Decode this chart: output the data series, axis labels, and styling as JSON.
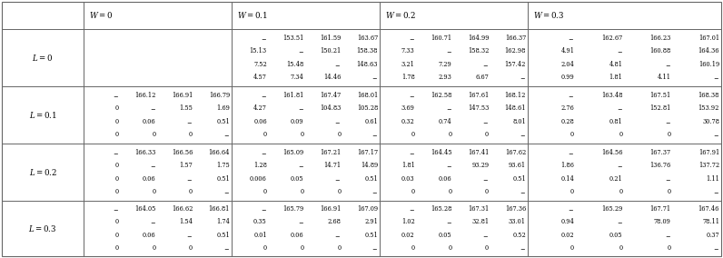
{
  "col_headers": [
    "W = 0",
    "W = 0.1",
    "W = 0.2",
    "W = 0.3"
  ],
  "row_headers": [
    "L = 0",
    "L = 0.1",
    "L = 0.2",
    "L = 0.3"
  ],
  "cells": {
    "L=0,W=0": "",
    "L=0,W=0.1": [
      [
        "–",
        "153.51",
        "161.59",
        "163.67"
      ],
      [
        "15.13",
        "–",
        "150.21",
        "158.38"
      ],
      [
        "7.52",
        "15.48",
        "–",
        "148.63"
      ],
      [
        "4.57",
        "7.34",
        "14.46",
        "–"
      ]
    ],
    "L=0,W=0.2": [
      [
        "–",
        "160.71",
        "164.99",
        "166.37"
      ],
      [
        "7.33",
        "–",
        "158.32",
        "162.98"
      ],
      [
        "3.21",
        "7.29",
        "–",
        "157.42"
      ],
      [
        "1.78",
        "2.93",
        "6.67",
        "–"
      ]
    ],
    "L=0,W=0.3": [
      [
        "–",
        "162.67",
        "166.23",
        "167.01"
      ],
      [
        "4.91",
        "–",
        "160.88",
        "164.36"
      ],
      [
        "2.04",
        "4.81",
        "–",
        "160.19"
      ],
      [
        "0.99",
        "1.81",
        "4.11",
        "–"
      ]
    ],
    "L=0.1,W=0": [
      [
        "–",
        "166.12",
        "166.91",
        "166.79"
      ],
      [
        "0",
        "–",
        "1.55",
        "1.69"
      ],
      [
        "0",
        "0.06",
        "–",
        "0.51"
      ],
      [
        "0",
        "0",
        "0",
        "–"
      ]
    ],
    "L=0.1,W=0.1": [
      [
        "–",
        "161.81",
        "167.47",
        "168.01"
      ],
      [
        "4.27",
        "–",
        "104.83",
        "105.28"
      ],
      [
        "0.06",
        "0.09",
        "–",
        "0.61"
      ],
      [
        "0",
        "0",
        "0",
        "–"
      ]
    ],
    "L=0.1,W=0.2": [
      [
        "–",
        "162.58",
        "167.61",
        "168.12"
      ],
      [
        "3.69",
        "–",
        "147.53",
        "148.61"
      ],
      [
        "0.32",
        "0.74",
        "–",
        "8.01"
      ],
      [
        "0",
        "0",
        "0",
        "–"
      ]
    ],
    "L=0.1,W=0.3": [
      [
        "–",
        "163.48",
        "167.51",
        "168.38"
      ],
      [
        "2.76",
        "–",
        "152.81",
        "153.92"
      ],
      [
        "0.28",
        "0.81",
        "–",
        "30.78"
      ],
      [
        "0",
        "0",
        "0",
        "–"
      ]
    ],
    "L=0.2,W=0": [
      [
        "–",
        "166.33",
        "166.56",
        "166.64"
      ],
      [
        "0",
        "–",
        "1.57",
        "1.75"
      ],
      [
        "0",
        "0.06",
        "–",
        "0.51"
      ],
      [
        "0",
        "0",
        "0",
        "–"
      ]
    ],
    "L=0.2,W=0.1": [
      [
        "–",
        "165.09",
        "167.21",
        "167.17"
      ],
      [
        "1.28",
        "–",
        "14.71",
        "14.89"
      ],
      [
        "0.006",
        "0.05",
        "–",
        "0.51"
      ],
      [
        "0",
        "0",
        "0",
        "–"
      ]
    ],
    "L=0.2,W=0.2": [
      [
        "–",
        "164.45",
        "167.41",
        "167.62"
      ],
      [
        "1.81",
        "–",
        "93.29",
        "93.61"
      ],
      [
        "0.03",
        "0.06",
        "–",
        "0.51"
      ],
      [
        "0",
        "0",
        "0",
        "–"
      ]
    ],
    "L=0.2,W=0.3": [
      [
        "–",
        "164.56",
        "167.37",
        "167.91"
      ],
      [
        "1.86",
        "–",
        "136.76",
        "137.72"
      ],
      [
        "0.14",
        "0.21",
        "–",
        "1.11"
      ],
      [
        "0",
        "0",
        "0",
        "–"
      ]
    ],
    "L=0.3,W=0": [
      [
        "–",
        "164.05",
        "166.62",
        "166.81"
      ],
      [
        "0",
        "–",
        "1.54",
        "1.74"
      ],
      [
        "0",
        "0.06",
        "–",
        "0.51"
      ],
      [
        "0",
        "0",
        "0",
        "–"
      ]
    ],
    "L=0.3,W=0.1": [
      [
        "–",
        "165.79",
        "166.91",
        "167.09"
      ],
      [
        "0.35",
        "–",
        "2.68",
        "2.91"
      ],
      [
        "0.01",
        "0.06",
        "–",
        "0.51"
      ],
      [
        "0",
        "0",
        "0",
        "–"
      ]
    ],
    "L=0.3,W=0.2": [
      [
        "–",
        "165.28",
        "167.31",
        "167.36"
      ],
      [
        "1.02",
        "–",
        "32.81",
        "33.01"
      ],
      [
        "0.02",
        "0.05",
        "–",
        "0.52"
      ],
      [
        "0",
        "0",
        "0",
        "–"
      ]
    ],
    "L=0.3,W=0.3": [
      [
        "–",
        "165.29",
        "167.71",
        "167.46"
      ],
      [
        "0.94",
        "–",
        "78.09",
        "78.11"
      ],
      [
        "0.02",
        "0.05",
        "–",
        "0.37"
      ],
      [
        "0",
        "0",
        "0",
        "–"
      ]
    ]
  },
  "line_color": "#aaaaaa",
  "text_color": "#000000",
  "font_size": 4.8,
  "header_font_size": 6.2
}
